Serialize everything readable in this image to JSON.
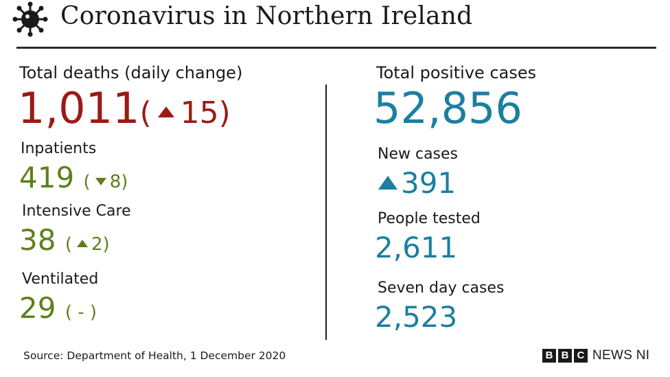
{
  "header": {
    "title": "Coronavirus in Northern Ireland",
    "icon": "coronavirus-icon"
  },
  "left": {
    "deaths": {
      "label": "Total deaths (daily change)",
      "value": "1,011",
      "change": "15",
      "direction": "up"
    },
    "inpatients": {
      "label": "Inpatients",
      "value": "419",
      "change": "8",
      "direction": "down"
    },
    "icu": {
      "label": "Intensive Care",
      "value": "38",
      "change": "2",
      "direction": "up"
    },
    "ventilated": {
      "label": "Ventilated",
      "value": "29",
      "change": "-"
    }
  },
  "right": {
    "positive": {
      "label": "Total positive cases",
      "value": "52,856"
    },
    "new_cases": {
      "label": "New cases",
      "value": "391",
      "direction": "up"
    },
    "tested": {
      "label": "People tested",
      "value": "2,611"
    },
    "seven_day": {
      "label": "Seven day cases",
      "value": "2,523"
    }
  },
  "footer": {
    "source": "Source: Department of Health, 1 December 2020",
    "logo_letters": [
      "B",
      "B",
      "C"
    ],
    "logo_text": "NEWS NI"
  },
  "colors": {
    "deaths": "#9b1a16",
    "hospital": "#5f7f1a",
    "cases": "#1b7f9f",
    "text": "#1a1a1a"
  }
}
